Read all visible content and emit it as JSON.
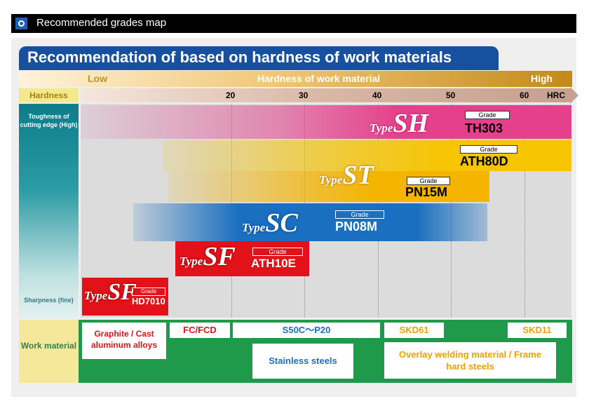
{
  "section": {
    "title": "Recommended grades map"
  },
  "heading": "Recommendation of based on hardness of work materials",
  "hardness_bar": {
    "low": "Low",
    "middle": "Hardness of work material",
    "high": "High"
  },
  "scale": {
    "label": "Hardness",
    "ticks": [
      {
        "value": "20",
        "hrc": 20
      },
      {
        "value": "30",
        "hrc": 30
      },
      {
        "value": "40",
        "hrc": 40
      },
      {
        "value": "50",
        "hrc": 50
      },
      {
        "value": "60",
        "hrc": 60
      }
    ],
    "unit": "HRC"
  },
  "axis_labels": {
    "toughness": "Toughness of cutting edge (High)",
    "sharpness": "Sharpness (fine)"
  },
  "products": [
    {
      "type": "Type",
      "letters": "SH",
      "grade_label": "Grade",
      "grade": "TH303",
      "color": "#e5408b"
    },
    {
      "type": "Type",
      "letters": "ST",
      "grade_label": "Grade",
      "grade": "ATH80D",
      "grade2_label": "Grade",
      "grade2": "PN15M",
      "color": "#f6c400"
    },
    {
      "type": "Type",
      "letters": "SC",
      "grade_label": "Grade",
      "grade": "PN08M",
      "color": "#1a6fc0"
    },
    {
      "type": "Type",
      "letters": "SF",
      "grade_label": "Grade",
      "grade": "ATH10E",
      "color": "#e2111a"
    },
    {
      "type": "Type",
      "letters": "SF",
      "grade_label": "Grade",
      "grade": "HD7010",
      "color": "#e2111a"
    }
  ],
  "work_material": {
    "label": "Work material",
    "items": [
      {
        "text": "Graphite / Cast aluminum alloys"
      },
      {
        "text": "FC/FCD"
      },
      {
        "text": "S50C～P20"
      },
      {
        "text": "SKD61"
      },
      {
        "text": "SKD11"
      },
      {
        "text": "Stainless steels"
      },
      {
        "text": "Overlay welding material / Frame hard steels"
      }
    ]
  },
  "colors": {
    "header_blue": "#1850a0",
    "work_green": "#1f9a4a",
    "teal": "#0c7c8a"
  }
}
